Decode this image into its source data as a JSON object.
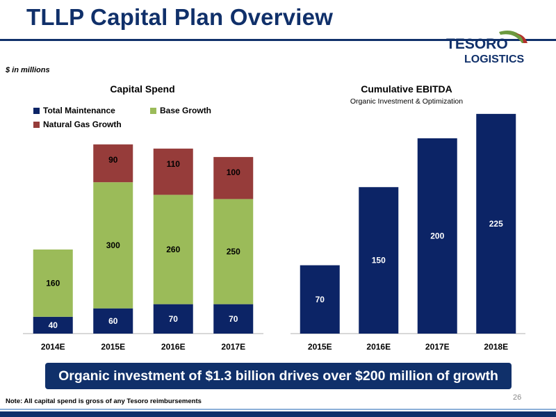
{
  "page": {
    "title": "TLLP Capital Plan Overview",
    "units_note": "$ in millions",
    "logo_line1": "TESORO",
    "logo_line2": "LOGISTICS",
    "banner": "Organic investment of $1.3 billion drives over $200 million of growth",
    "footnote": "Note: All capital spend is gross of any Tesoro reimbursements",
    "page_number": "26"
  },
  "colors": {
    "navy": "#10306a",
    "maintenance": "#0c2466",
    "base_growth": "#9bbb59",
    "gas_growth": "#963c3a",
    "logo_green": "#6c9a3e",
    "logo_red": "#b2302c"
  },
  "chart_data": [
    {
      "type": "bar",
      "stacked": true,
      "title": "Capital Spend",
      "categories": [
        "2014E",
        "2015E",
        "2016E",
        "2017E"
      ],
      "series": [
        {
          "name": "Total Maintenance",
          "color": "#0c2466",
          "values": [
            40,
            60,
            70,
            70
          ]
        },
        {
          "name": "Base Growth",
          "color": "#9bbb59",
          "values": [
            160,
            300,
            260,
            250
          ]
        },
        {
          "name": "Natural Gas Growth",
          "color": "#963c3a",
          "values": [
            null,
            90,
            110,
            100
          ]
        }
      ],
      "legend": "top-left",
      "grid": false
    },
    {
      "type": "bar",
      "title": "Cumulative EBITDA",
      "subtitle": "Organic Investment & Optimization",
      "categories": [
        "2015E",
        "2016E",
        "2017E",
        "2018E"
      ],
      "values": [
        70,
        150,
        200,
        225
      ],
      "color": "#0c2466",
      "grid": false
    }
  ]
}
